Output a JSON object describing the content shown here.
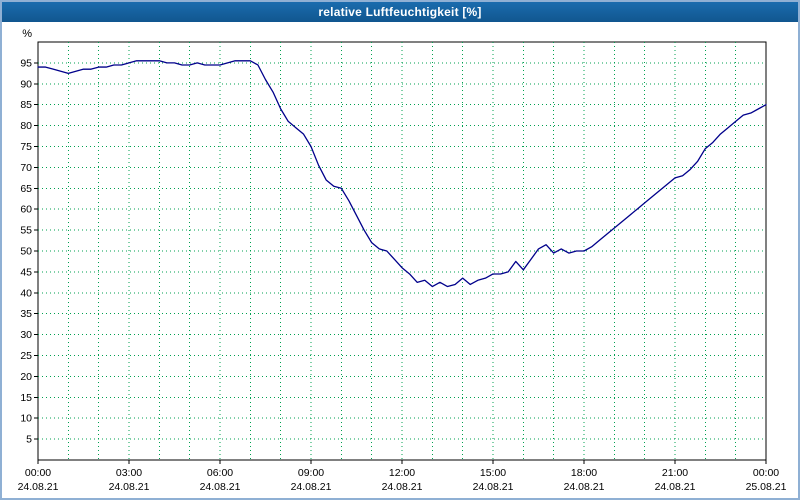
{
  "window": {
    "title": "relative Luftfeuchtigkeit [%]",
    "titlebar_color": "#15609f",
    "frame_color": "#8fb0d4"
  },
  "chart_data": {
    "type": "line",
    "title": "relative Luftfeuchtigkeit [%]",
    "xlabel": "",
    "ylabel": "%",
    "ylim": [
      0,
      100
    ],
    "grid": true,
    "legend_position": "none",
    "colors": {
      "line": "#00008b",
      "grid": "#00a050",
      "axis": "#000000",
      "plot_background": "#ffffff",
      "text": "#000000"
    },
    "y_ticks": [
      5,
      10,
      15,
      20,
      25,
      30,
      35,
      40,
      45,
      50,
      55,
      60,
      65,
      70,
      75,
      80,
      85,
      90,
      95
    ],
    "x_axis": {
      "range_hours": [
        0,
        24
      ],
      "minor_gridline_every_hours": 1,
      "major_ticks": [
        {
          "hour": 0,
          "time": "00:00",
          "date": "24.08.21"
        },
        {
          "hour": 3,
          "time": "03:00",
          "date": "24.08.21"
        },
        {
          "hour": 6,
          "time": "06:00",
          "date": "24.08.21"
        },
        {
          "hour": 9,
          "time": "09:00",
          "date": "24.08.21"
        },
        {
          "hour": 12,
          "time": "12:00",
          "date": "24.08.21"
        },
        {
          "hour": 15,
          "time": "15:00",
          "date": "24.08.21"
        },
        {
          "hour": 18,
          "time": "18:00",
          "date": "24.08.21"
        },
        {
          "hour": 21,
          "time": "21:00",
          "date": "24.08.21"
        },
        {
          "hour": 24,
          "time": "00:00",
          "date": "25.08.21"
        }
      ]
    },
    "series": [
      {
        "name": "relative Luftfeuchtigkeit",
        "unit": "%",
        "x_start_hour": 0,
        "x_step_hours": 0.25,
        "values": [
          94,
          94,
          93.5,
          93,
          92.5,
          93,
          93.5,
          93.5,
          94,
          94,
          94.5,
          94.5,
          95,
          95.5,
          95.5,
          95.5,
          95.5,
          95,
          95,
          94.5,
          94.5,
          95,
          94.5,
          94.5,
          94.5,
          95,
          95.5,
          95.5,
          95.5,
          94.5,
          91,
          88,
          84,
          81,
          79.5,
          78,
          75,
          70.5,
          67,
          65.5,
          65,
          62,
          58.5,
          55,
          52,
          50.5,
          50,
          48,
          46,
          44.5,
          42.5,
          43,
          41.5,
          42.5,
          41.5,
          42,
          43.5,
          42,
          43,
          43.5,
          44.5,
          44.5,
          45,
          47.5,
          45.5,
          48,
          50.5,
          51.5,
          49.5,
          50.5,
          49.5,
          50,
          50,
          51,
          52.5,
          54,
          55.5,
          57,
          58.5,
          60,
          61.5,
          63,
          64.5,
          66,
          67.5,
          68,
          69.5,
          71.5,
          74.5,
          76,
          78,
          79.5,
          81,
          82.5,
          83,
          84,
          85
        ]
      }
    ]
  }
}
